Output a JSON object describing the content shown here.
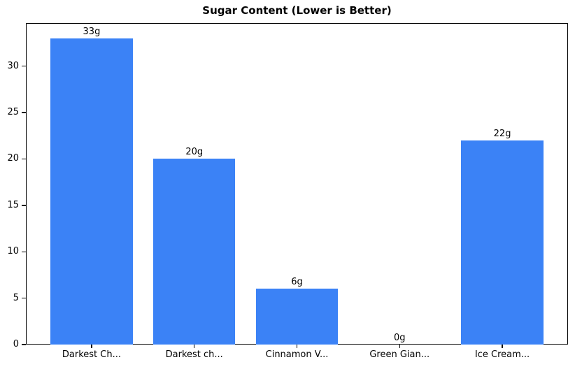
{
  "chart_data": {
    "type": "bar",
    "title": "Sugar Content (Lower is Better)",
    "categories": [
      "Darkest Ch...",
      "Darkest ch...",
      "Cinnamon V...",
      "Green Gian...",
      "Ice Cream..."
    ],
    "values": [
      33,
      20,
      6,
      0,
      22
    ],
    "bar_labels": [
      "33g",
      "20g",
      "6g",
      "0g",
      "22g"
    ],
    "xlabel": "",
    "ylabel": "",
    "yticks": [
      0,
      5,
      10,
      15,
      20,
      25,
      30
    ],
    "ylim": [
      0,
      34.65
    ],
    "xlim": [
      -0.64,
      4.64
    ],
    "bar_width": 0.8,
    "bar_color": "#3b82f6",
    "axis_color": "#000000",
    "text_color": "#000000",
    "background_color": "#ffffff",
    "grid": false,
    "legend_position": "none"
  }
}
